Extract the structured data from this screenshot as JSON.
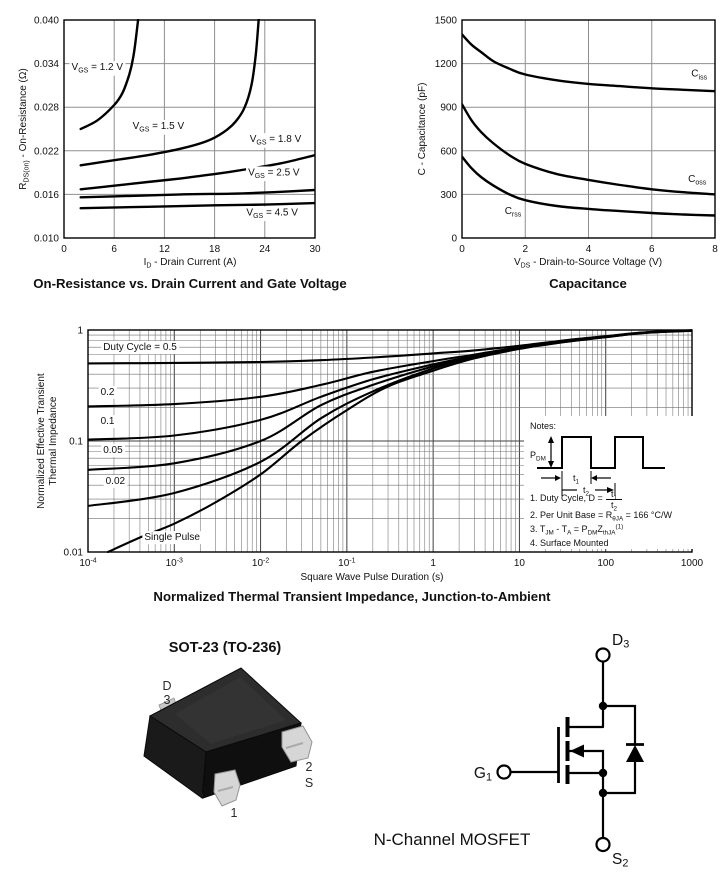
{
  "colors": {
    "curve": "#000000",
    "grid_linear": "#8f8f8f",
    "grid_log_major": "#3f3f3f",
    "grid_log_minor": "#707070",
    "frame": "#000000",
    "lead_metal": "#d6d6d6",
    "body_top": "#2d2d2d",
    "body_front": "#1a1a1a",
    "body_side": "#0f0f0f"
  },
  "chart_data": [
    {
      "type": "line",
      "title": "On-Resistance vs. Drain Current and Gate Voltage",
      "xlabel": "I~D~ - Drain Current (A)",
      "ylabel": "R~DS(on)~ - On-Resistance (Ω)",
      "xlim": [
        0,
        30
      ],
      "ylim": [
        0.01,
        0.04
      ],
      "xtick_values": [
        0,
        6,
        12,
        18,
        24,
        30
      ],
      "xtick_labels": [
        "0",
        "6",
        "12",
        "18",
        "24",
        "30"
      ],
      "ytick_values": [
        0.01,
        0.016,
        0.022,
        0.028,
        0.034,
        0.04
      ],
      "ytick_labels": [
        "0.010",
        "0.016",
        "0.022",
        "0.028",
        "0.034",
        "0.040"
      ],
      "grid": "on",
      "legend_position": "inline-labels",
      "series": [
        {
          "name": "V~GS~ = 1.2 V",
          "label_pos": [
            0.9,
            0.0331
          ],
          "label_anchor": "start",
          "points": [
            [
              2,
              0.025
            ],
            [
              4,
              0.0262
            ],
            [
              6,
              0.0283
            ],
            [
              7,
              0.03
            ],
            [
              7.8,
              0.0325
            ],
            [
              8.3,
              0.035
            ],
            [
              8.7,
              0.0385
            ],
            [
              8.9,
              0.0405
            ]
          ]
        },
        {
          "name": "V~GS~ = 1.5 V",
          "label_pos": [
            8.2,
            0.025
          ],
          "label_anchor": "start",
          "points": [
            [
              2,
              0.02
            ],
            [
              6,
              0.0207
            ],
            [
              10,
              0.0214
            ],
            [
              14,
              0.0223
            ],
            [
              17,
              0.0233
            ],
            [
              19,
              0.0245
            ],
            [
              20.5,
              0.026
            ],
            [
              21.6,
              0.028
            ],
            [
              22.4,
              0.031
            ],
            [
              22.9,
              0.035
            ],
            [
              23.3,
              0.0405
            ]
          ]
        },
        {
          "name": "V~GS~ = 1.8 V",
          "label_pos": [
            22.2,
            0.0232
          ],
          "label_anchor": "start",
          "points": [
            [
              2,
              0.0167
            ],
            [
              6,
              0.0172
            ],
            [
              10,
              0.0177
            ],
            [
              14,
              0.0182
            ],
            [
              18,
              0.0188
            ],
            [
              22,
              0.0195
            ],
            [
              26,
              0.0203
            ],
            [
              30,
              0.0214
            ]
          ]
        },
        {
          "name": "V~GS~ = 2.5 V",
          "label_pos": [
            22.0,
            0.0186
          ],
          "label_anchor": "start",
          "points": [
            [
              2,
              0.0156
            ],
            [
              8,
              0.0158
            ],
            [
              14,
              0.016
            ],
            [
              20,
              0.0161
            ],
            [
              25,
              0.0163
            ],
            [
              30,
              0.0166
            ]
          ]
        },
        {
          "name": "V~GS~ = 4.5 V",
          "label_pos": [
            21.8,
            0.0131
          ],
          "label_anchor": "start",
          "points": [
            [
              2,
              0.0141
            ],
            [
              10,
              0.0143
            ],
            [
              18,
              0.0145
            ],
            [
              24,
              0.0146
            ],
            [
              30,
              0.0148
            ]
          ]
        }
      ]
    },
    {
      "type": "line",
      "title": "Capacitance",
      "xlabel": "V~DS~ - Drain-to-Source Voltage (V)",
      "ylabel": "C - Capacitance (pF)",
      "xlim": [
        0,
        8
      ],
      "ylim": [
        0,
        1500
      ],
      "xtick_values": [
        0,
        2,
        4,
        6,
        8
      ],
      "xtick_labels": [
        "0",
        "2",
        "4",
        "6",
        "8"
      ],
      "ytick_values": [
        0,
        300,
        600,
        900,
        1200,
        1500
      ],
      "ytick_labels": [
        "0",
        "300",
        "600",
        "900",
        "1200",
        "1500"
      ],
      "grid": "on",
      "legend_position": "inline-labels",
      "series": [
        {
          "name": "C~iss~",
          "label_pos": [
            7.25,
            1110
          ],
          "label_anchor": "start",
          "points": [
            [
              0,
              1400
            ],
            [
              0.3,
              1330
            ],
            [
              0.6,
              1280
            ],
            [
              1,
              1215
            ],
            [
              1.5,
              1165
            ],
            [
              2,
              1125
            ],
            [
              3,
              1085
            ],
            [
              4,
              1060
            ],
            [
              5,
              1045
            ],
            [
              6,
              1030
            ],
            [
              7,
              1020
            ],
            [
              8,
              1010
            ]
          ]
        },
        {
          "name": "C~oss~",
          "label_pos": [
            7.15,
            385
          ],
          "label_anchor": "start",
          "points": [
            [
              0,
              920
            ],
            [
              0.3,
              810
            ],
            [
              0.6,
              730
            ],
            [
              1,
              650
            ],
            [
              1.5,
              570
            ],
            [
              2,
              510
            ],
            [
              3,
              440
            ],
            [
              4,
              400
            ],
            [
              5,
              365
            ],
            [
              6,
              335
            ],
            [
              7,
              315
            ],
            [
              8,
              300
            ]
          ]
        },
        {
          "name": "C~rss~",
          "label_pos": [
            1.35,
            165
          ],
          "label_anchor": "start",
          "points": [
            [
              0,
              560
            ],
            [
              0.3,
              480
            ],
            [
              0.6,
              420
            ],
            [
              1,
              360
            ],
            [
              1.5,
              300
            ],
            [
              2,
              260
            ],
            [
              3,
              220
            ],
            [
              4,
              200
            ],
            [
              5,
              185
            ],
            [
              6,
              172
            ],
            [
              7,
              162
            ],
            [
              8,
              155
            ]
          ]
        }
      ]
    },
    {
      "type": "line",
      "xscale": "log",
      "yscale": "log",
      "title": "Normalized Thermal Transient Impedance, Junction-to-Ambient",
      "xlabel": "Square Wave Pulse Duration (s)",
      "ylabel_line1": "Normalized Effective Transient",
      "ylabel_line2": "Thermal Impedance",
      "xlim": [
        0.0001,
        1000
      ],
      "ylim": [
        0.01,
        1
      ],
      "xtick_values": [
        0.0001,
        0.001,
        0.01,
        0.1,
        1,
        10,
        100,
        1000
      ],
      "xtick_labels": [
        "10^-4^",
        "10^-3^",
        "10^-2^",
        "10^-1^",
        "1",
        "10",
        "100",
        "1000"
      ],
      "ytick_values": [
        1,
        0.1,
        0.01
      ],
      "ytick_labels": [
        "1",
        "0.1",
        "0.01"
      ],
      "grid": "log-log full grid",
      "legend_position": "inline-labels",
      "series": [
        {
          "name": "Duty Cycle = 0.5",
          "label_pos": [
            0.00015,
            0.66
          ],
          "label_anchor": "start",
          "points": [
            [
              0.0001,
              0.5
            ],
            [
              0.001,
              0.505
            ],
            [
              0.01,
              0.515
            ],
            [
              0.05,
              0.535
            ],
            [
              0.2,
              0.565
            ],
            [
              1,
              0.615
            ],
            [
              3,
              0.655
            ],
            [
              10,
              0.72
            ],
            [
              30,
              0.8
            ],
            [
              100,
              0.88
            ],
            [
              300,
              0.955
            ],
            [
              1000,
              0.995
            ]
          ]
        },
        {
          "name": "0.2",
          "label_pos": [
            0.00014,
            0.26
          ],
          "label_anchor": "start",
          "points": [
            [
              0.0001,
              0.205
            ],
            [
              0.001,
              0.215
            ],
            [
              0.01,
              0.25
            ],
            [
              0.05,
              0.32
            ],
            [
              0.2,
              0.42
            ],
            [
              1,
              0.525
            ],
            [
              3,
              0.6
            ],
            [
              10,
              0.7
            ],
            [
              30,
              0.79
            ],
            [
              100,
              0.875
            ],
            [
              300,
              0.952
            ],
            [
              1000,
              0.992
            ]
          ]
        },
        {
          "name": "0.1",
          "label_pos": [
            0.00014,
            0.142
          ],
          "label_anchor": "start",
          "points": [
            [
              0.0001,
              0.103
            ],
            [
              0.001,
              0.112
            ],
            [
              0.01,
              0.155
            ],
            [
              0.05,
              0.25
            ],
            [
              0.2,
              0.36
            ],
            [
              1,
              0.49
            ],
            [
              3,
              0.585
            ],
            [
              10,
              0.69
            ],
            [
              30,
              0.785
            ],
            [
              100,
              0.87
            ],
            [
              300,
              0.95
            ],
            [
              1000,
              0.99
            ]
          ]
        },
        {
          "name": "0.05",
          "label_pos": [
            0.00015,
            0.078
          ],
          "label_anchor": "start",
          "points": [
            [
              0.0001,
              0.055
            ],
            [
              0.001,
              0.063
            ],
            [
              0.01,
              0.1
            ],
            [
              0.05,
              0.21
            ],
            [
              0.2,
              0.32
            ],
            [
              1,
              0.47
            ],
            [
              3,
              0.575
            ],
            [
              10,
              0.685
            ],
            [
              30,
              0.78
            ],
            [
              100,
              0.868
            ],
            [
              300,
              0.948
            ],
            [
              1000,
              0.988
            ]
          ]
        },
        {
          "name": "0.02",
          "label_pos": [
            0.00016,
            0.041
          ],
          "label_anchor": "start",
          "points": [
            [
              0.0001,
              0.026
            ],
            [
              0.001,
              0.034
            ],
            [
              0.01,
              0.065
            ],
            [
              0.05,
              0.16
            ],
            [
              0.2,
              0.28
            ],
            [
              1,
              0.45
            ],
            [
              3,
              0.565
            ],
            [
              10,
              0.68
            ],
            [
              30,
              0.775
            ],
            [
              100,
              0.865
            ],
            [
              300,
              0.946
            ],
            [
              1000,
              0.986
            ]
          ]
        },
        {
          "name": "Single Pulse",
          "label_pos": [
            0.00045,
            0.0128
          ],
          "label_anchor": "start",
          "points": [
            [
              0.00017,
              0.01
            ],
            [
              0.0004,
              0.0135
            ],
            [
              0.001,
              0.018
            ],
            [
              0.003,
              0.028
            ],
            [
              0.01,
              0.05
            ],
            [
              0.03,
              0.1
            ],
            [
              0.1,
              0.19
            ],
            [
              0.3,
              0.31
            ],
            [
              1,
              0.43
            ],
            [
              3,
              0.555
            ],
            [
              10,
              0.675
            ],
            [
              30,
              0.77
            ],
            [
              100,
              0.862
            ],
            [
              300,
              0.944
            ],
            [
              1000,
              0.984
            ]
          ]
        }
      ],
      "notes": {
        "heading": "Notes:",
        "pdm": "P~DM~",
        "t1": "t~1~",
        "t2": "t~2~",
        "item1_prefix": "1. Duty Cycle, D =",
        "frac_num": "t~1~",
        "frac_den": "t~2~",
        "item2": "2. Per Unit Base = R~θJA~ = 166 °C/W",
        "item3": "3. T~JM~ - T~A~ = P~DM~Z~thJA~^(1)^",
        "item4": "4. Surface Mounted"
      }
    }
  ],
  "package_figure": {
    "title": "SOT-23 (TO-236)",
    "pin3_name": "D",
    "pin3_num": "3",
    "pin2_num": "2",
    "pin2_name": "S",
    "pin1_num": "1"
  },
  "schematic": {
    "caption": "N-Channel MOSFET",
    "drain_label": "D~3~",
    "gate_label": "G~1~",
    "source_label": "S~2~"
  }
}
